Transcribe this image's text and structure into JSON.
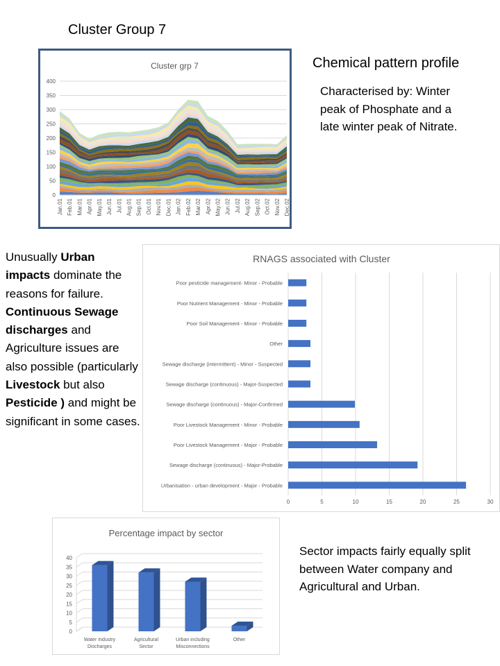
{
  "slide": {
    "title": "Cluster Group 7",
    "profile_title": "Chemical pattern profile",
    "profile_text": "Characterised by: Winter  peak of Phosphate and a late winter  peak of Nitrate.",
    "urban_paragraph": [
      {
        "text": "Unusually ",
        "bold": false
      },
      {
        "text": "Urban impacts",
        "bold": true
      },
      {
        "text": " dominate the reasons for failure. ",
        "bold": false
      },
      {
        "text": "Continuous  Sewage discharges",
        "bold": true
      },
      {
        "text": " and Agriculture issues are also possible (particularly ",
        "bold": false
      },
      {
        "text": "Livestock",
        "bold": true
      },
      {
        "text": " but also ",
        "bold": false
      },
      {
        "text": "Pesticide )",
        "bold": true
      },
      {
        "text": " and might be significant in some cases.",
        "bold": false
      }
    ],
    "sector_text": "Sector impacts fairly equally split between Water company and Agricultural and Urban."
  },
  "chart_data": [
    {
      "type": "area",
      "title": "Cluster grp 7",
      "stacked": true,
      "ylim": [
        0,
        400
      ],
      "yticks": [
        0,
        50,
        100,
        150,
        200,
        250,
        300,
        350,
        400
      ],
      "grid": true,
      "x": [
        "Jan.01",
        "Feb.01",
        "Mar.01",
        "Apr.01",
        "May.01",
        "Jun.01",
        "Jul.01",
        "Aug.01",
        "Sep.01",
        "Oct.01",
        "Nov.01",
        "Dec.01",
        "Jan.02",
        "Feb.02",
        "Mar.02",
        "Apr.02",
        "May.02",
        "Jun.02",
        "Jul.02",
        "Aug.02",
        "Sep.02",
        "Oct.02",
        "Nov.02",
        "Dec.02"
      ],
      "total": [
        295,
        268,
        218,
        197,
        213,
        220,
        222,
        220,
        225,
        230,
        238,
        255,
        300,
        335,
        330,
        278,
        260,
        225,
        178,
        180,
        180,
        180,
        178,
        210
      ],
      "colors": [
        "#4472c4",
        "#ed7d31",
        "#a5a5a5",
        "#ffc000",
        "#5b9bd5",
        "#70ad47",
        "#264478",
        "#9e480e",
        "#636363",
        "#997300",
        "#255e91",
        "#43682b",
        "#698ed0",
        "#f1975a",
        "#b7b7b7",
        "#ffcd33",
        "#7cafdd",
        "#8cc168",
        "#1f3864",
        "#843c0c",
        "#3a3a3a",
        "#7f6000",
        "#1e4e79",
        "#375623",
        "#c9d7ef",
        "#fad7bd",
        "#e2e2e2",
        "#ffe699",
        "#bdd7ee",
        "#c6e0b4"
      ]
    },
    {
      "type": "bar",
      "orientation": "horizontal",
      "title": "RNAGS associated with Cluster",
      "categories": [
        "Poor pesticide management- Minor - Probable",
        "Poor Nutrient Management - Minor - Probable",
        "Poor Soil Management - Minor - Probable",
        "Other",
        "Sewage discharge (intermittent) - Minor - Suspected",
        "Sewage discharge (continuous) - Major-Suspected",
        "Sewage discharge (continuous) - Major-Confirmed",
        "Poor Livestock Management - Minor - Probable",
        "Poor Livestock Management - Major - Probable",
        "Sewage discharge (continuous) - Major-Probable",
        "Urbanisation - urban development - Major - Probable"
      ],
      "values": [
        2.7,
        2.7,
        2.7,
        3.3,
        3.3,
        3.3,
        9.9,
        10.6,
        13.2,
        19.2,
        26.4
      ],
      "xlim": [
        0,
        30
      ],
      "xticks": [
        0,
        5,
        10,
        15,
        20,
        25,
        30
      ],
      "color": "#4472c4",
      "grid": true
    },
    {
      "type": "bar",
      "style": "3d",
      "title": "Percentage impact by sector",
      "categories": [
        "Water Industry\nDischarges",
        "Agricultural\nSector",
        "Urban including\nMisconnections",
        "Other"
      ],
      "values": [
        36,
        32,
        27,
        3
      ],
      "ylim": [
        0,
        40
      ],
      "yticks": [
        0,
        5,
        10,
        15,
        20,
        25,
        30,
        35,
        40
      ],
      "color": "#4472c4",
      "grid": true
    }
  ]
}
